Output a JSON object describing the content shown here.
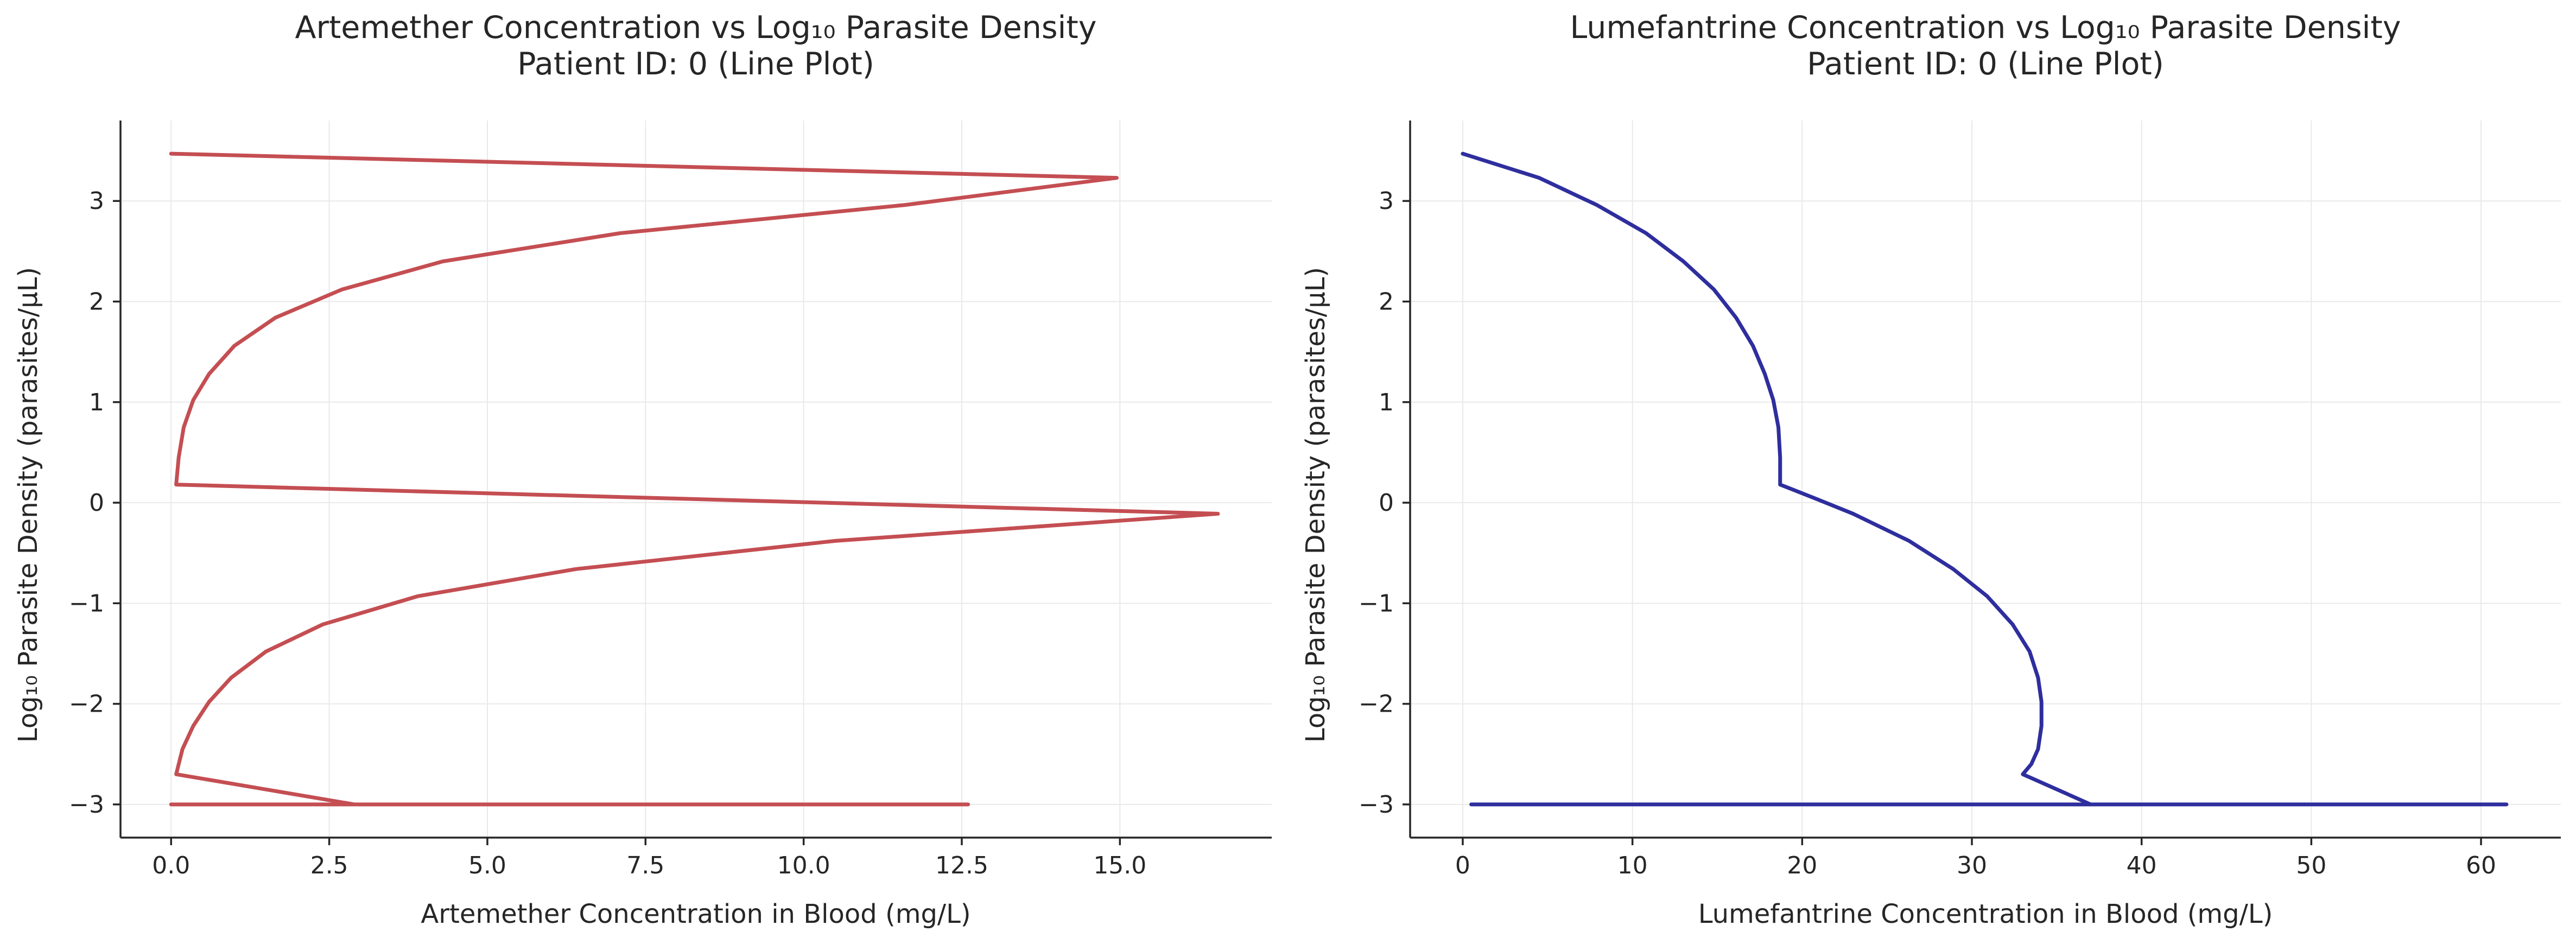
{
  "chart_data": [
    {
      "type": "line",
      "title_line1": "Artemether Concentration vs Log₁₀ Parasite Density",
      "title_line2": "Patient ID: 0 (Line Plot)",
      "xlabel": "Artemether Concentration in Blood (mg/L)",
      "ylabel": "Log₁₀ Parasite Density (parasites/µL)",
      "xlim": [
        -0.8,
        17.4
      ],
      "ylim": [
        -3.33,
        3.8
      ],
      "xticks": [
        0.0,
        2.5,
        5.0,
        7.5,
        10.0,
        12.5,
        15.0
      ],
      "xtick_labels": [
        "0.0",
        "2.5",
        "5.0",
        "7.5",
        "10.0",
        "12.5",
        "15.0"
      ],
      "yticks": [
        -3,
        -2,
        -1,
        0,
        1,
        2,
        3
      ],
      "ytick_labels": [
        "−3",
        "−2",
        "−1",
        "0",
        "1",
        "2",
        "3"
      ],
      "grid": true,
      "color": "#c44e52",
      "series": [
        {
          "x": [
            0.0,
            14.95,
            11.6,
            7.1,
            4.3,
            2.7,
            1.65,
            1.0,
            0.6,
            0.35,
            0.2,
            0.12,
            0.08,
            16.55,
            10.5,
            6.4,
            3.9,
            2.4,
            1.5,
            0.95,
            0.6,
            0.35,
            0.18,
            0.12,
            0.08,
            2.9,
            12.6,
            0.0
          ],
          "y": [
            3.47,
            3.23,
            2.96,
            2.68,
            2.4,
            2.12,
            1.84,
            1.56,
            1.28,
            1.02,
            0.75,
            0.45,
            0.18,
            -0.11,
            -0.38,
            -0.66,
            -0.93,
            -1.21,
            -1.48,
            -1.74,
            -1.98,
            -2.22,
            -2.45,
            -2.6,
            -2.7,
            -3.0,
            -3.0,
            -3.0
          ]
        }
      ]
    },
    {
      "type": "line",
      "title_line1": "Lumefantrine Concentration vs Log₁₀ Parasite Density",
      "title_line2": "Patient ID: 0 (Line Plot)",
      "xlabel": "Lumefantrine Concentration in Blood (mg/L)",
      "ylabel": "Log₁₀ Parasite Density (parasites/µL)",
      "xlim": [
        -3.1,
        64.7
      ],
      "ylim": [
        -3.33,
        3.8
      ],
      "xticks": [
        0,
        10,
        20,
        30,
        40,
        50,
        60
      ],
      "xtick_labels": [
        "0",
        "10",
        "20",
        "30",
        "40",
        "50",
        "60"
      ],
      "yticks": [
        -3,
        -2,
        -1,
        0,
        1,
        2,
        3
      ],
      "ytick_labels": [
        "−3",
        "−2",
        "−1",
        "0",
        "1",
        "2",
        "3"
      ],
      "grid": true,
      "color": "#2e2e9e",
      "series": [
        {
          "x": [
            0.0,
            4.5,
            7.9,
            10.8,
            13.0,
            14.8,
            16.1,
            17.1,
            17.8,
            18.3,
            18.6,
            18.7,
            18.7,
            20.8,
            23.0,
            26.3,
            28.9,
            30.9,
            32.4,
            33.4,
            33.9,
            34.1,
            34.1,
            33.9,
            33.5,
            33.0,
            37.0,
            61.5,
            0.5
          ],
          "y": [
            3.47,
            3.23,
            2.96,
            2.68,
            2.4,
            2.12,
            1.84,
            1.56,
            1.28,
            1.02,
            0.75,
            0.45,
            0.18,
            0.04,
            -0.11,
            -0.38,
            -0.66,
            -0.93,
            -1.21,
            -1.48,
            -1.74,
            -1.98,
            -2.22,
            -2.45,
            -2.6,
            -2.7,
            -3.0,
            -3.0,
            -3.0
          ]
        }
      ]
    }
  ]
}
